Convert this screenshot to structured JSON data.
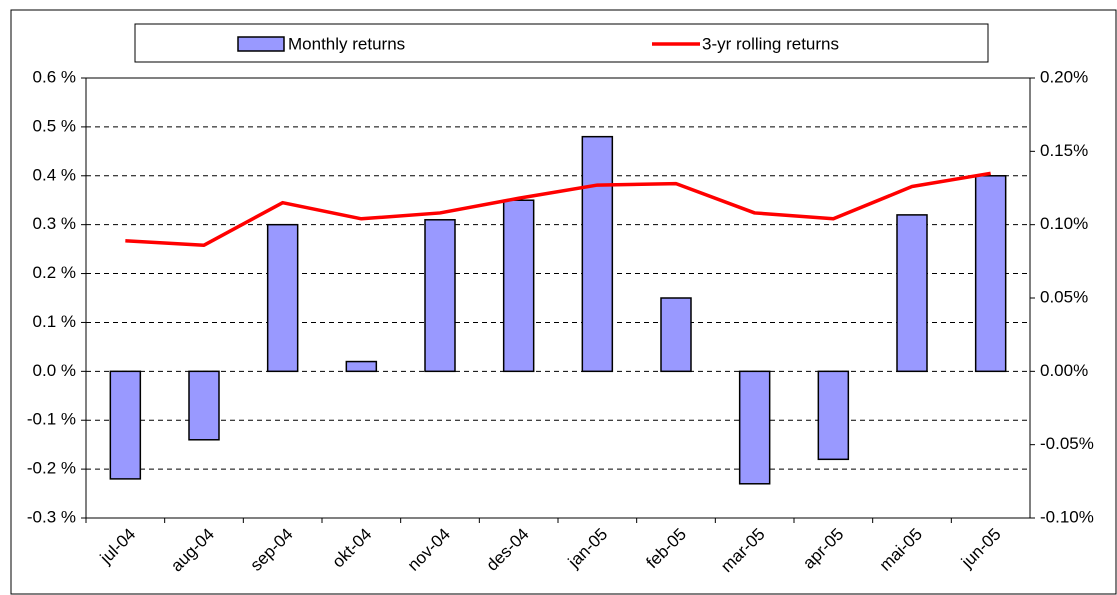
{
  "chart_data": {
    "type": "bar",
    "categories": [
      "jul-04",
      "aug-04",
      "sep-04",
      "okt-04",
      "nov-04",
      "des-04",
      "jan-05",
      "feb-05",
      "mar-05",
      "apr-05",
      "mai-05",
      "jun-05"
    ],
    "series": [
      {
        "name": "Monthly returns",
        "type": "bar",
        "color": "#9999ff",
        "values": [
          -0.22,
          -0.14,
          0.3,
          0.02,
          0.31,
          0.35,
          0.48,
          0.15,
          -0.23,
          -0.18,
          0.32,
          0.4
        ]
      },
      {
        "name": "3-yr rolling returns",
        "type": "line",
        "axis": "y2",
        "color": "#ff0000",
        "values": [
          0.089,
          0.086,
          0.115,
          0.104,
          0.108,
          0.118,
          0.127,
          0.128,
          0.108,
          0.104,
          0.126,
          0.135
        ]
      }
    ],
    "ylim": [
      -0.3,
      0.6
    ],
    "yticks": [
      {
        "value": -0.3,
        "label": "-0.3 %"
      },
      {
        "value": -0.2,
        "label": "-0.2 %"
      },
      {
        "value": -0.1,
        "label": "-0.1 %"
      },
      {
        "value": 0,
        "label": "0.0 %"
      },
      {
        "value": 0.1,
        "label": "0.1 %"
      },
      {
        "value": 0.2,
        "label": "0.2 %"
      },
      {
        "value": 0.3,
        "label": "0.3 %"
      },
      {
        "value": 0.4,
        "label": "0.4 %"
      },
      {
        "value": 0.5,
        "label": "0.5 %"
      },
      {
        "value": 0.6,
        "label": "0.6 %"
      }
    ],
    "y2lim": [
      -0.1,
      0.2
    ],
    "y2ticks": [
      {
        "value": -0.1,
        "label": "-0.10%"
      },
      {
        "value": -0.05,
        "label": "-0.05%"
      },
      {
        "value": 0,
        "label": "0.00%"
      },
      {
        "value": 0.05,
        "label": "0.05%"
      },
      {
        "value": 0.1,
        "label": "0.10%"
      },
      {
        "value": 0.15,
        "label": "0.15%"
      },
      {
        "value": 0.2,
        "label": "0.20%"
      }
    ],
    "grid": true,
    "legend": "top"
  }
}
